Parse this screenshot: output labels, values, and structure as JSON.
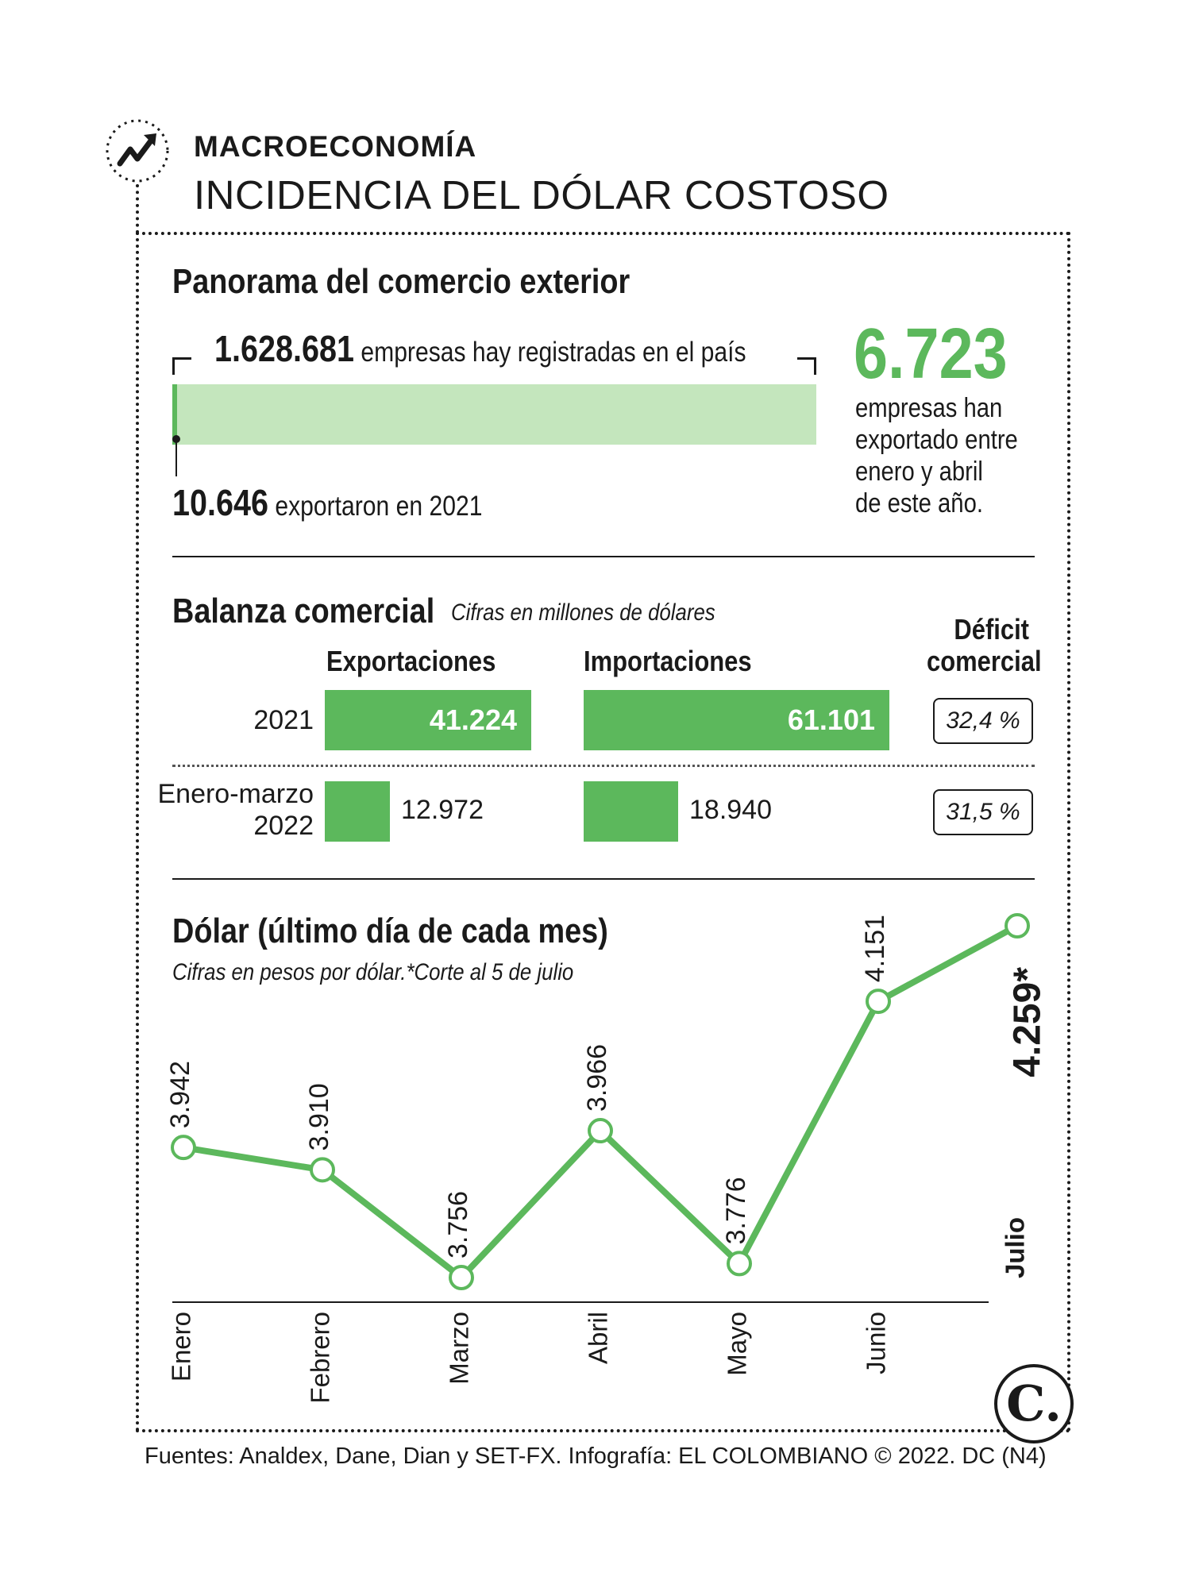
{
  "header": {
    "section_tag": "MACROECONOMÍA",
    "title": "INCIDENCIA DEL DÓLAR COSTOSO"
  },
  "panorama": {
    "title": "Panorama del comercio exterior",
    "registered_value": "1.628.681",
    "registered_text": "empresas hay registradas en el país",
    "exported_2021_value": "10.646",
    "exported_2021_text": "exportaron en 2021",
    "exported_2022_value": "6.723",
    "exported_2022_text_lines": [
      "empresas han",
      "exportado entre",
      "enero y abril",
      "de este año."
    ]
  },
  "balanza": {
    "title": "Balanza comercial",
    "subtitle": "Cifras en millones de dólares",
    "col_exports": "Exportaciones",
    "col_imports": "Importaciones",
    "col_deficit_lines": [
      "Déficit",
      "comercial"
    ],
    "rows": [
      {
        "label_lines": [
          "2021"
        ],
        "exports": 41224,
        "exports_label": "41.224",
        "imports": 61101,
        "imports_label": "61.101",
        "deficit": "32,4 %"
      },
      {
        "label_lines": [
          "Enero-marzo",
          "2022"
        ],
        "exports": 12972,
        "exports_label": "12.972",
        "imports": 18940,
        "imports_label": "18.940",
        "deficit": "31,5 %"
      }
    ]
  },
  "chart_data": {
    "type": "line",
    "title": "Dólar (último día de cada mes)",
    "subtitle": "Cifras en pesos por dólar.*Corte al 5 de julio",
    "categories": [
      "Enero",
      "Febrero",
      "Marzo",
      "Abril",
      "Mayo",
      "Junio",
      "Julio"
    ],
    "series": [
      {
        "values": [
          3942,
          3910,
          3756,
          3966,
          3776,
          4151,
          4259
        ]
      }
    ],
    "value_labels": [
      "3.942",
      "3.910",
      "3.756",
      "3.966",
      "3.776",
      "4.151",
      "4.259*"
    ],
    "ylim": [
      3600,
      4300
    ],
    "color": "#5cb85c",
    "grid": false
  },
  "footer": "Fuentes: Analdex, Dane, Dian y SET-FX. Infografía: EL COLOMBIANO © 2022. DC (N4)",
  "logo_text": "C.",
  "colors": {
    "accent": "#5cb85c",
    "light_accent": "#c4e6bd",
    "ink": "#1a1a1a"
  }
}
